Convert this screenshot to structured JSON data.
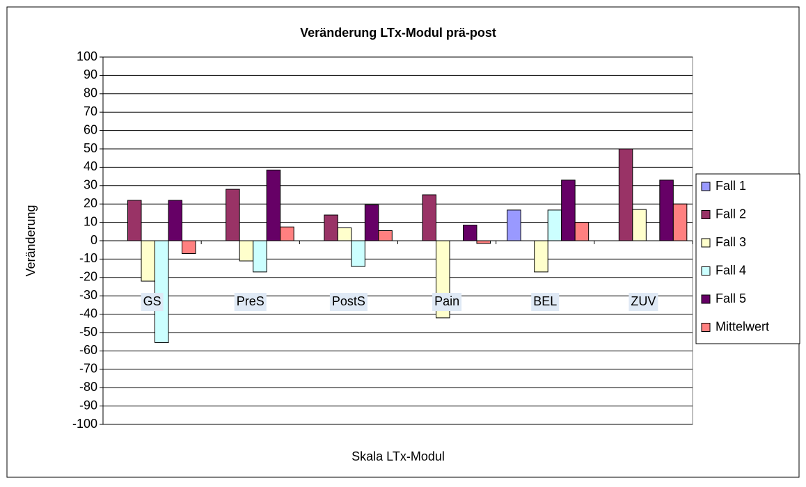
{
  "chart_data": {
    "type": "bar",
    "title": "Veränderung LTx-Modul prä-post",
    "x_label": "Skala LTx-Modul",
    "y_label": "Veränderung",
    "categories": [
      "GS",
      "PreS",
      "PostS",
      "Pain",
      "BEL",
      "ZUV"
    ],
    "series": [
      {
        "name": "Fall 1",
        "color": "#9999ff",
        "values": [
          null,
          null,
          null,
          null,
          16.7,
          null
        ]
      },
      {
        "name": "Fall 2",
        "color": "#993366",
        "values": [
          22,
          28,
          14,
          25,
          null,
          50
        ]
      },
      {
        "name": "Fall 3",
        "color": "#ffffcc",
        "values": [
          -22,
          -11,
          7,
          -42,
          -17,
          17
        ]
      },
      {
        "name": "Fall 4",
        "color": "#ccffff",
        "values": [
          -55.5,
          -17,
          -14,
          null,
          16.7,
          null
        ]
      },
      {
        "name": "Fall 5",
        "color": "#660066",
        "values": [
          22,
          38.5,
          19.5,
          8.5,
          33,
          33
        ]
      },
      {
        "name": "Mittelwert",
        "color": "#ff8080",
        "values": [
          -7,
          7.5,
          5.5,
          -1.5,
          10,
          20
        ]
      }
    ],
    "ylim": [
      -100,
      100
    ],
    "yticks": [
      -100,
      -90,
      -80,
      -70,
      -60,
      -50,
      -40,
      -30,
      -20,
      -10,
      0,
      10,
      20,
      30,
      40,
      50,
      60,
      70,
      80,
      90,
      100
    ],
    "grid": true,
    "legend": "right"
  }
}
